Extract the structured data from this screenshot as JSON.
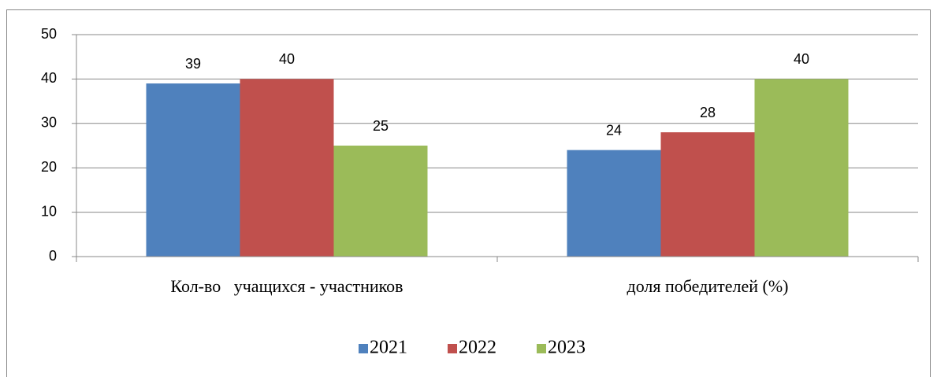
{
  "chart_data": {
    "type": "bar",
    "categories": [
      "Кол-во   учащихся - участников",
      "доля победителей (%)"
    ],
    "series": [
      {
        "name": "2021",
        "color": "#4f81bd",
        "values": [
          39,
          24
        ]
      },
      {
        "name": "2022",
        "color": "#c0504d",
        "values": [
          40,
          28
        ]
      },
      {
        "name": "2023",
        "color": "#9bbb59",
        "values": [
          25,
          40
        ]
      }
    ],
    "ylim": [
      0,
      50
    ],
    "yticks": [
      0,
      10,
      20,
      30,
      40,
      50
    ],
    "grid": true,
    "legend": "bottom"
  }
}
